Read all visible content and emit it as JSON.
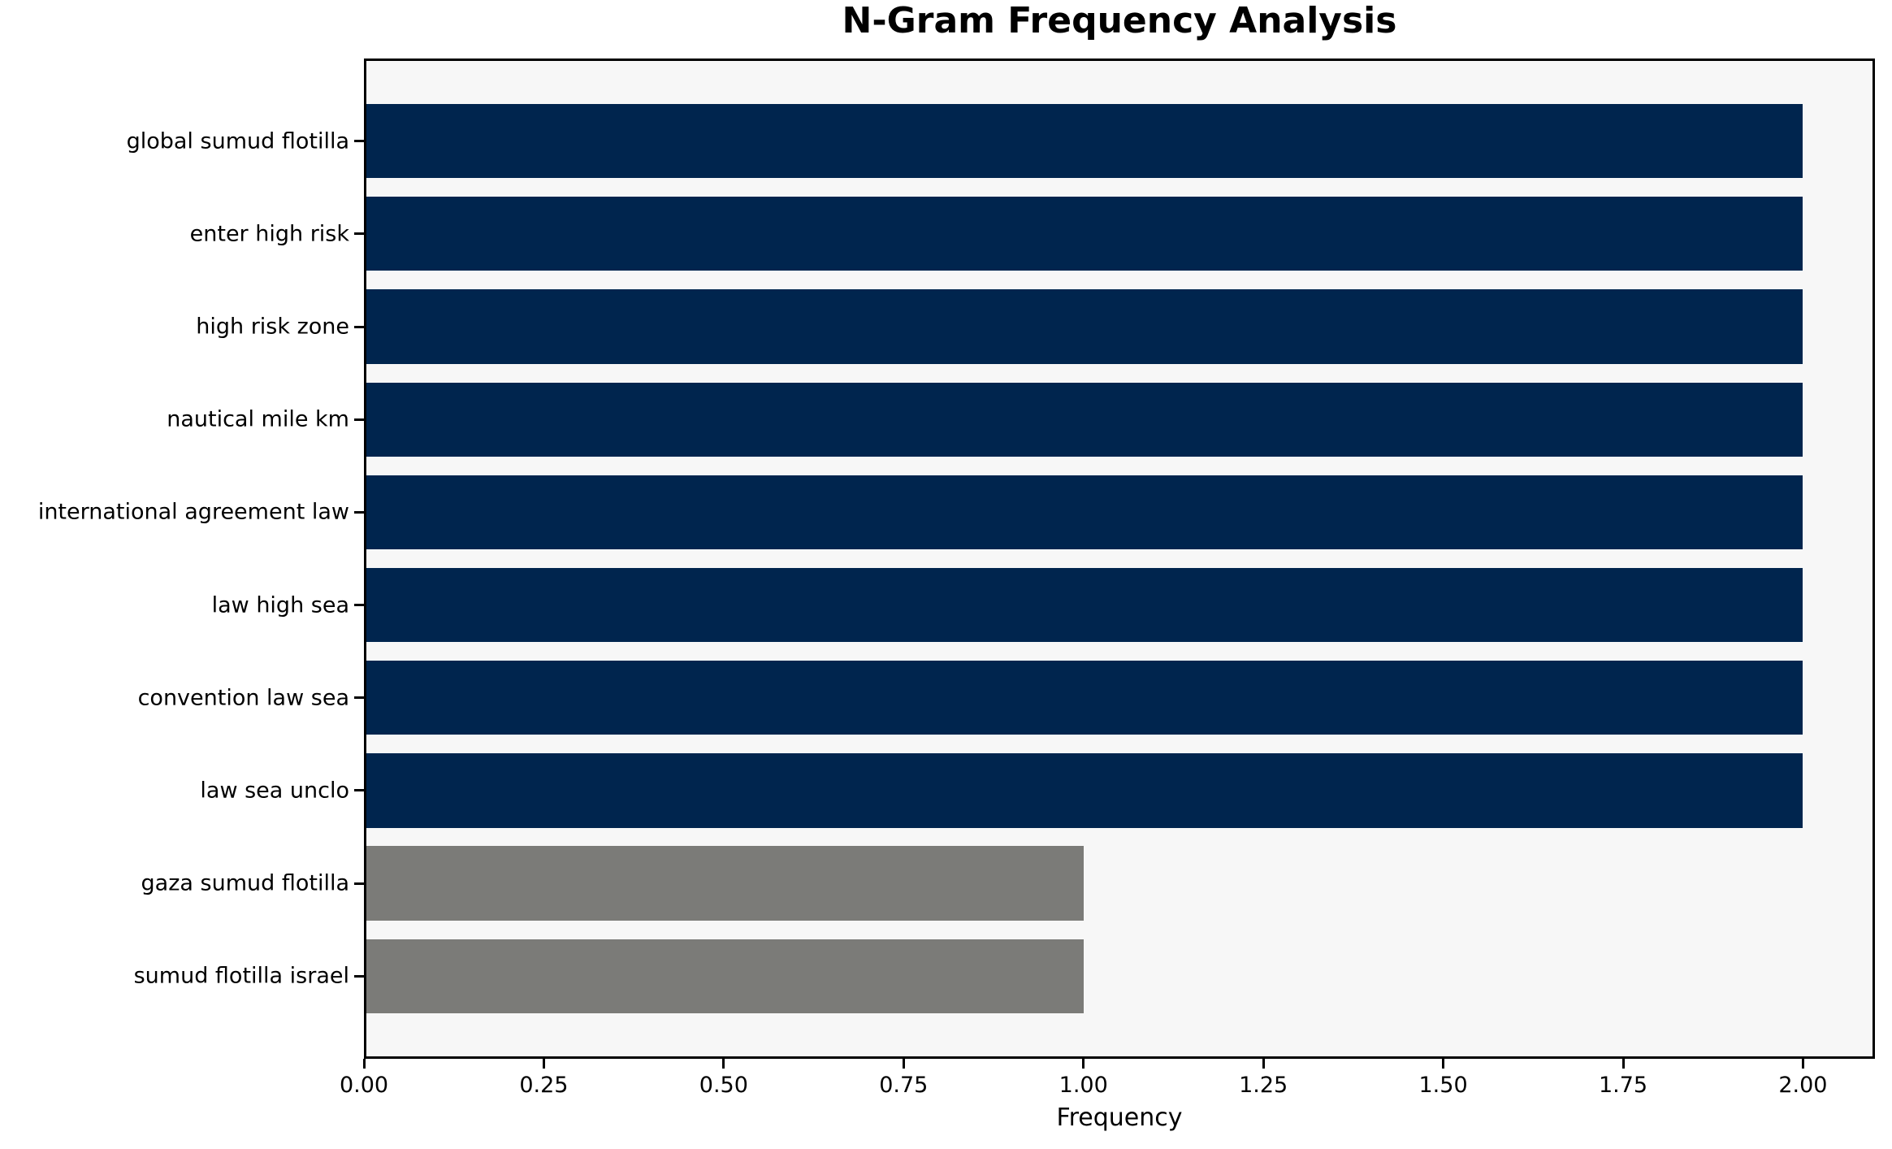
{
  "chart_data": {
    "type": "bar",
    "orientation": "horizontal",
    "title": "N-Gram Frequency Analysis",
    "xlabel": "Frequency",
    "ylabel": "",
    "categories": [
      "global sumud flotilla",
      "enter high risk",
      "high risk zone",
      "nautical mile km",
      "international agreement law",
      "law high sea",
      "convention law sea",
      "law sea unclo",
      "gaza sumud flotilla",
      "sumud flotilla israel"
    ],
    "values": [
      2,
      2,
      2,
      2,
      2,
      2,
      2,
      2,
      1,
      1
    ],
    "bar_colors": [
      "#00254e",
      "#00254e",
      "#00254e",
      "#00254e",
      "#00254e",
      "#00254e",
      "#00254e",
      "#00254e",
      "#7b7b78",
      "#7b7b78"
    ],
    "xlim": [
      0,
      2.1
    ],
    "xticks": [
      0.0,
      0.25,
      0.5,
      0.75,
      1.0,
      1.25,
      1.5,
      1.75,
      2.0
    ],
    "xtick_labels": [
      "0.00",
      "0.25",
      "0.50",
      "0.75",
      "1.00",
      "1.25",
      "1.50",
      "1.75",
      "2.00"
    ],
    "grid": false,
    "legend_position": "none",
    "colors": {
      "bar_primary": "#00254e",
      "bar_secondary": "#7b7b78",
      "plot_background": "#f7f7f7",
      "figure_background": "#ffffff",
      "spine": "#000000",
      "text": "#000000"
    }
  }
}
